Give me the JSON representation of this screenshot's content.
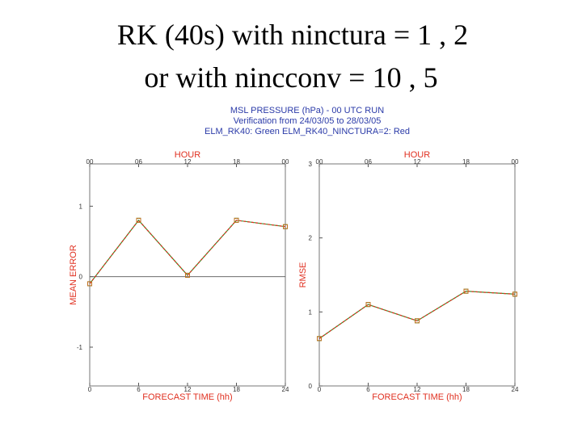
{
  "title_lines": [
    "RK (40s) with ninctura = 1 , 2",
    "or with nincconv = 10 , 5"
  ],
  "header": [
    "MSL PRESSURE (hPa) - 00 UTC RUN",
    "Verification from 24/03/05 to 28/03/05",
    "ELM_RK40: Green   ELM_RK40_NINCTURA=2: Red"
  ],
  "chart_data": [
    {
      "type": "line",
      "title": "HOUR",
      "top_labels": [
        "00",
        "06",
        "12",
        "18",
        "00"
      ],
      "xlabel": "FORECAST TIME (hh)",
      "ylabel": "MEAN ERROR",
      "x": [
        0,
        6,
        12,
        18,
        24
      ],
      "xlim": [
        0,
        24
      ],
      "xticks": [
        0,
        6,
        12,
        18,
        24
      ],
      "ylim": [
        -1.55,
        1.6
      ],
      "yticks": [
        -1,
        0,
        1
      ],
      "zero_line": true,
      "series": [
        {
          "color": "#2e9a2e",
          "values": [
            -0.1,
            0.8,
            0.02,
            0.8,
            0.71
          ]
        },
        {
          "color": "#e03020",
          "values": [
            -0.1,
            0.8,
            0.02,
            0.8,
            0.71
          ]
        }
      ]
    },
    {
      "type": "line",
      "title": "HOUR",
      "top_labels": [
        "00",
        "06",
        "12",
        "18",
        "00"
      ],
      "xlabel": "FORECAST TIME (hh)",
      "ylabel": "RMSE",
      "x": [
        0,
        6,
        12,
        18,
        24
      ],
      "xlim": [
        0,
        24
      ],
      "xticks": [
        0,
        6,
        12,
        18,
        24
      ],
      "ylim": [
        0,
        3
      ],
      "yticks": [
        0,
        1,
        2,
        3
      ],
      "zero_line": false,
      "series": [
        {
          "color": "#2e9a2e",
          "values": [
            0.64,
            1.1,
            0.88,
            1.28,
            1.24
          ]
        },
        {
          "color": "#e03020",
          "values": [
            0.64,
            1.1,
            0.88,
            1.28,
            1.24
          ]
        }
      ]
    }
  ]
}
